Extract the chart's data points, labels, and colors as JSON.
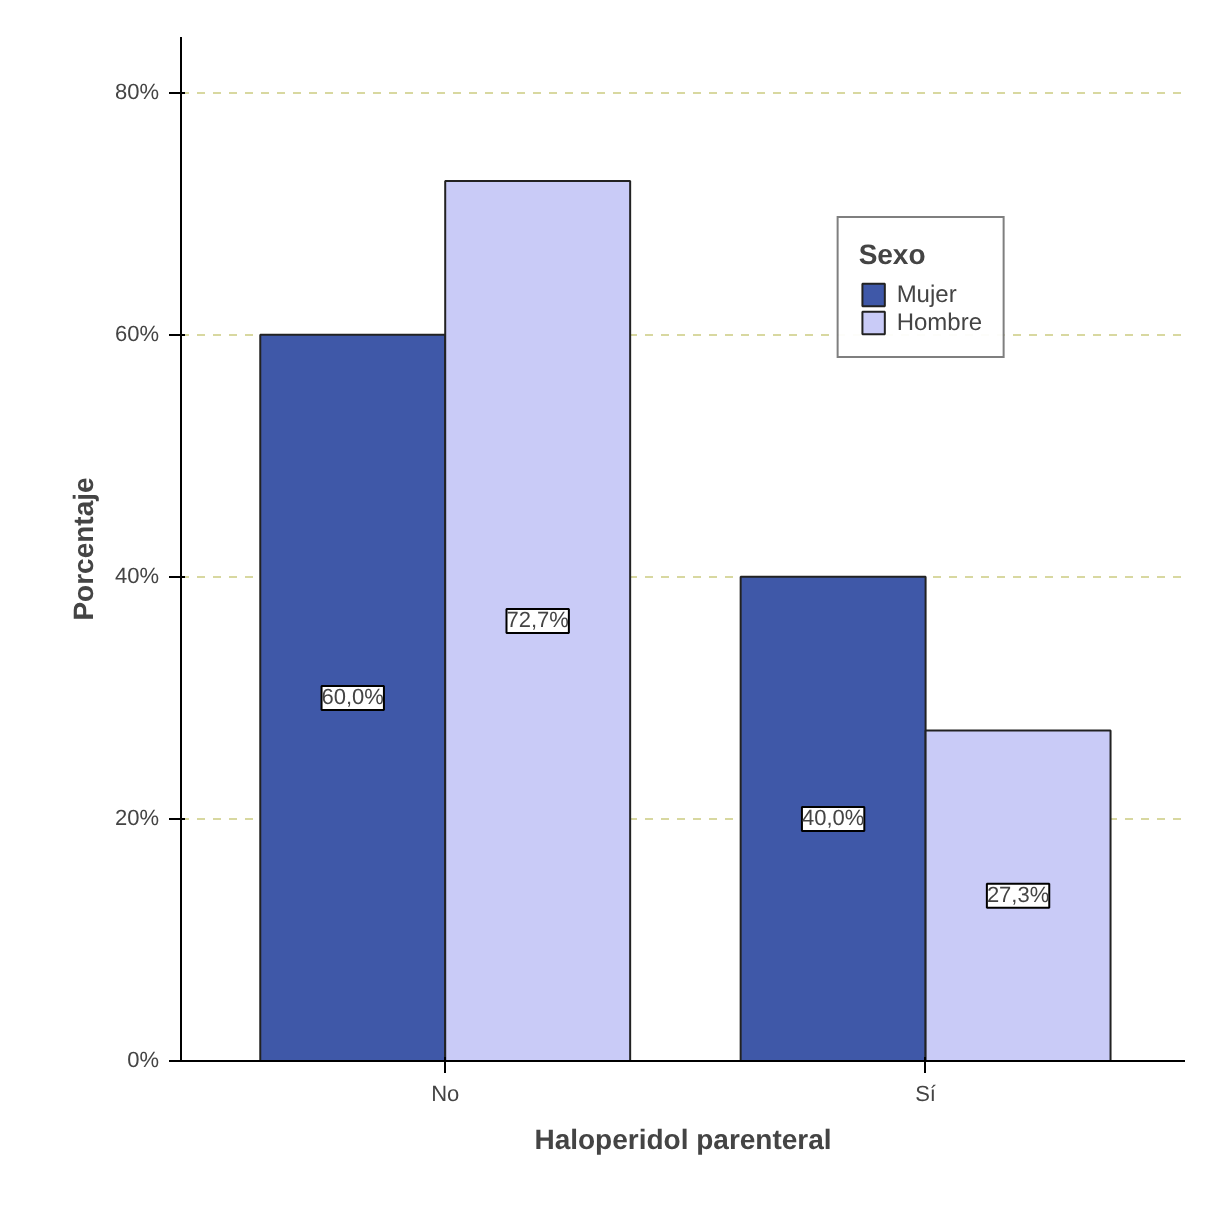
{
  "chart_data": {
    "type": "bar",
    "xlabel": "Haloperidol parenteral",
    "ylabel": "Porcentaje",
    "legend_title": "Sexo",
    "categories": [
      "No",
      "Sí"
    ],
    "series": [
      {
        "name": "Mujer",
        "color": "#3f58a8",
        "values": [
          60.0,
          40.0
        ],
        "value_labels": [
          "60,0%",
          "40,0%"
        ]
      },
      {
        "name": "Hombre",
        "color": "#c9cbf7",
        "values": [
          72.7,
          27.3
        ],
        "value_labels": [
          "72,7%",
          "27,3%"
        ]
      }
    ],
    "ylim": [
      0,
      84.6
    ],
    "yticks": [
      {
        "value": 0,
        "label": "0%"
      },
      {
        "value": 20,
        "label": "20%"
      },
      {
        "value": 40,
        "label": "40%"
      },
      {
        "value": 60,
        "label": "60%"
      },
      {
        "value": 80,
        "label": "80%"
      }
    ],
    "grid": "y",
    "legend": "top right"
  }
}
